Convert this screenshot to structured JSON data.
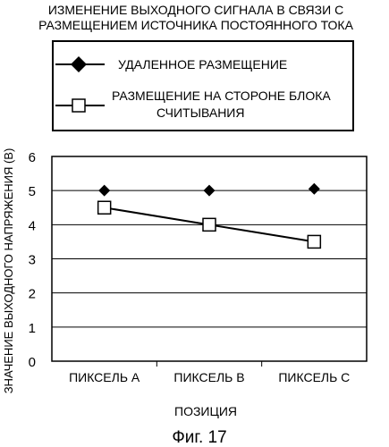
{
  "chart_data": {
    "type": "line",
    "title": "ИЗМЕНЕНИЕ ВЫХОДНОГО СИГНАЛА В СВЯЗИ С РАЗМЕЩЕНИЕМ ИСТОЧНИКА ПОСТОЯННОГО ТОКА",
    "title_lines": [
      "ИЗМЕНЕНИЕ ВЫХОДНОГО СИГНАЛА В СВЯЗИ С",
      "РАЗМЕЩЕНИЕМ ИСТОЧНИКА ПОСТОЯННОГО ТОКА"
    ],
    "xlabel": "ПОЗИЦИЯ",
    "ylabel": "ЗНАЧЕНИЕ ВЫХОДНОГО НАПРЯЖЕНИЯ (В)",
    "categories": [
      "ПИКСЕЛЬ А",
      "ПИКСЕЛЬ В",
      "ПИКСЕЛЬ С"
    ],
    "ylim": [
      0,
      6
    ],
    "yticks": [
      0,
      1,
      2,
      3,
      4,
      5,
      6
    ],
    "grid": true,
    "legend_position": "top",
    "series": [
      {
        "name": "УДАЛЕННОЕ РАЗМЕЩЕНИЕ",
        "name_lines": [
          "УДАЛЕННОЕ РАЗМЕЩЕНИЕ"
        ],
        "marker": "filled-diamond",
        "connected": false,
        "values": [
          5.0,
          5.0,
          5.05
        ]
      },
      {
        "name": "РАЗМЕЩЕНИЕ НА СТОРОНЕ БЛОКА СЧИТЫВАНИЯ",
        "name_lines": [
          "РАЗМЕЩЕНИЕ НА СТОРОНЕ БЛОКА",
          "СЧИТЫВАНИЯ"
        ],
        "marker": "open-square",
        "connected": true,
        "values": [
          4.5,
          4.0,
          3.5
        ]
      }
    ]
  },
  "caption": "Фиг. 17",
  "colors": {
    "ink": "#000000",
    "background": "#ffffff"
  }
}
